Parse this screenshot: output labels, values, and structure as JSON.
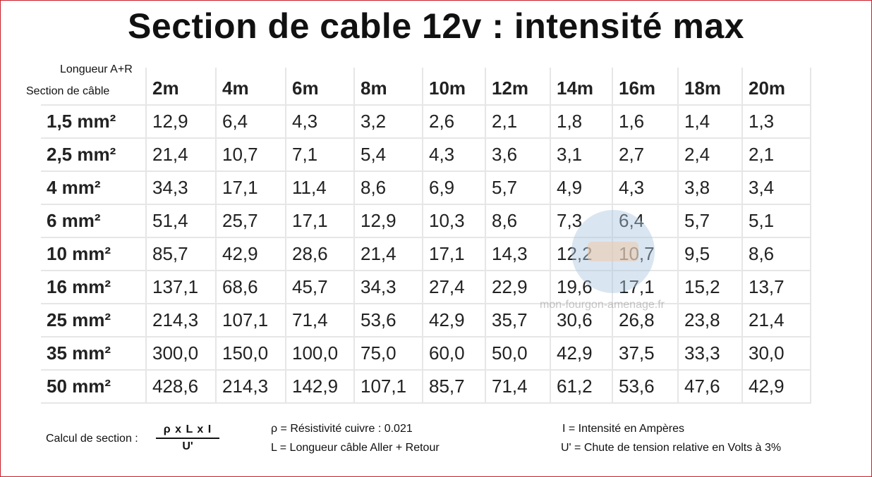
{
  "title": "Section de cable 12v : intensité max",
  "corner": {
    "top_label": "Longueur A+R",
    "bottom_label": "Section de câble"
  },
  "table": {
    "lengths": [
      "2m",
      "4m",
      "6m",
      "8m",
      "10m",
      "12m",
      "14m",
      "16m",
      "18m",
      "20m"
    ],
    "rows": [
      {
        "section": "1,5 mm²",
        "values": [
          "12,9",
          "6,4",
          "4,3",
          "3,2",
          "2,6",
          "2,1",
          "1,8",
          "1,6",
          "1,4",
          "1,3"
        ]
      },
      {
        "section": "2,5 mm²",
        "values": [
          "21,4",
          "10,7",
          "7,1",
          "5,4",
          "4,3",
          "3,6",
          "3,1",
          "2,7",
          "2,4",
          "2,1"
        ]
      },
      {
        "section": "4 mm²",
        "values": [
          "34,3",
          "17,1",
          "11,4",
          "8,6",
          "6,9",
          "5,7",
          "4,9",
          "4,3",
          "3,8",
          "3,4"
        ]
      },
      {
        "section": "6 mm²",
        "values": [
          "51,4",
          "25,7",
          "17,1",
          "12,9",
          "10,3",
          "8,6",
          "7,3",
          "6,4",
          "5,7",
          "5,1"
        ]
      },
      {
        "section": "10 mm²",
        "values": [
          "85,7",
          "42,9",
          "28,6",
          "21,4",
          "17,1",
          "14,3",
          "12,2",
          "10,7",
          "9,5",
          "8,6"
        ]
      },
      {
        "section": "16 mm²",
        "values": [
          "137,1",
          "68,6",
          "45,7",
          "34,3",
          "27,4",
          "22,9",
          "19,6",
          "17,1",
          "15,2",
          "13,7"
        ]
      },
      {
        "section": "25 mm²",
        "values": [
          "214,3",
          "107,1",
          "71,4",
          "53,6",
          "42,9",
          "35,7",
          "30,6",
          "26,8",
          "23,8",
          "21,4"
        ]
      },
      {
        "section": "35 mm²",
        "values": [
          "300,0",
          "150,0",
          "100,0",
          "75,0",
          "60,0",
          "50,0",
          "42,9",
          "37,5",
          "33,3",
          "30,0"
        ]
      },
      {
        "section": "50 mm²",
        "values": [
          "428,6",
          "214,3",
          "142,9",
          "107,1",
          "85,7",
          "71,4",
          "61,2",
          "53,6",
          "47,6",
          "42,9"
        ]
      }
    ]
  },
  "watermark": "mon-fourgon-amenage.fr",
  "formula": {
    "label": "Calcul de section :",
    "numerator": "ρ x L x I",
    "denominator": "U'"
  },
  "legend": {
    "rho": "ρ = Résistivité cuivre : 0.021",
    "length": "L = Longueur câble Aller + Retour",
    "intensity": "I = Intensité en Ampères",
    "voltage_drop": "U' = Chute de tension relative en Volts à 3%"
  },
  "colors": {
    "frame": "#c8202a",
    "grid_lines": "#e6e6e6",
    "watermark_circle": "#aac8e1"
  }
}
